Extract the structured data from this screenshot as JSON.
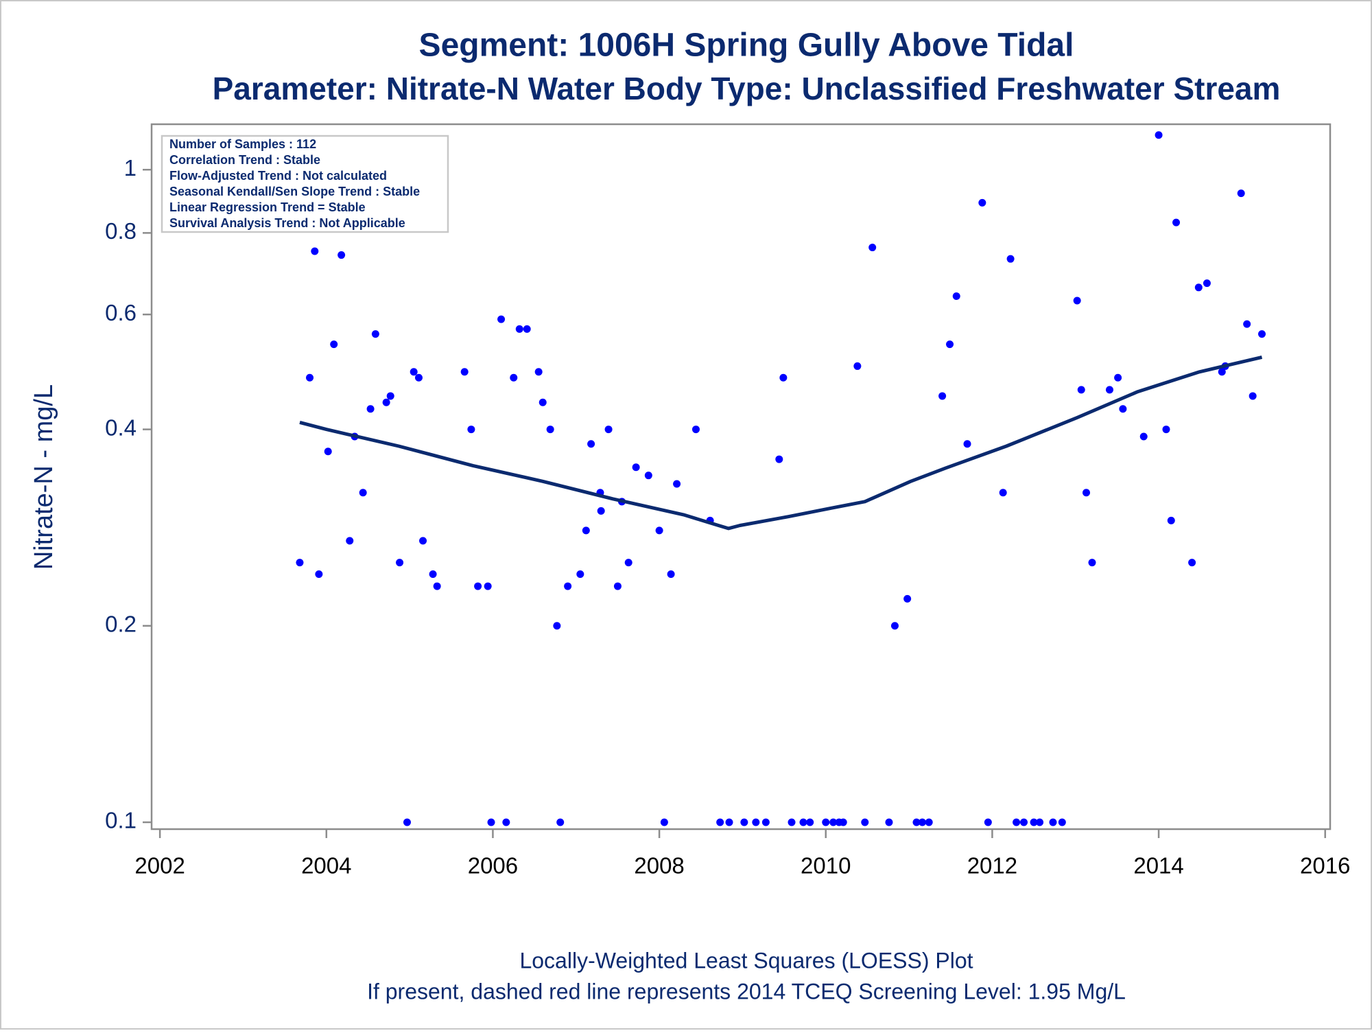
{
  "chart_data": {
    "type": "scatter",
    "title": "Segment: 1006H  Spring Gully Above Tidal",
    "subtitle": "Parameter: Nitrate-N   Water Body Type: Unclassified Freshwater Stream",
    "ylabel": "Nitrate-N - mg/L",
    "footnotes": [
      "Locally-Weighted Least Squares (LOESS) Plot",
      "If present, dashed red line represents 2014 TCEQ Screening Level: 1.95 Mg/L"
    ],
    "annotations": [
      "Number of Samples : 112",
      "Correlation Trend : Stable",
      "Flow-Adjusted Trend : Not calculated",
      "Seasonal Kendall/Sen Slope Trend : Stable",
      "Linear Regression Trend = Stable",
      "Survival Analysis Trend : Not Applicable"
    ],
    "ylog": true,
    "xlim": [
      2001.9,
      2016.06
    ],
    "xticks": [
      2002,
      2004,
      2006,
      2008,
      2010,
      2012,
      2014,
      2016
    ],
    "ylim": [
      0.0976,
      1.174
    ],
    "yticks": [
      0.1,
      0.2,
      0.4,
      0.6,
      0.8,
      1
    ],
    "series": [
      {
        "style": "points",
        "color": "#0000ff",
        "x": [
          2003.68,
          2003.8,
          2003.86,
          2003.91,
          2004.02,
          2004.09,
          2004.18,
          2004.28,
          2004.34,
          2004.44,
          2004.53,
          2004.59,
          2004.72,
          2004.77,
          2004.88,
          2004.97,
          2005.05,
          2005.11,
          2005.16,
          2005.28,
          2005.33,
          2005.66,
          2005.74,
          2005.82,
          2005.94,
          2005.98,
          2006.1,
          2006.16,
          2006.25,
          2006.32,
          2006.41,
          2006.55,
          2006.6,
          2006.69,
          2006.77,
          2006.81,
          2006.9,
          2007.05,
          2007.12,
          2007.18,
          2007.29,
          2007.3,
          2007.39,
          2007.5,
          2007.55,
          2007.63,
          2007.72,
          2007.87,
          2008.0,
          2008.06,
          2008.14,
          2008.21,
          2008.44,
          2008.61,
          2008.73,
          2008.84,
          2009.02,
          2009.16,
          2009.28,
          2009.44,
          2009.49,
          2009.59,
          2009.73,
          2009.81,
          2010.0,
          2010.09,
          2010.16,
          2010.21,
          2010.38,
          2010.47,
          2010.56,
          2010.76,
          2010.83,
          2010.98,
          2011.09,
          2011.16,
          2011.24,
          2011.4,
          2011.49,
          2011.57,
          2011.7,
          2011.88,
          2011.95,
          2012.13,
          2012.22,
          2012.29,
          2012.38,
          2012.5,
          2012.57,
          2012.73,
          2012.84,
          2013.02,
          2013.07,
          2013.13,
          2013.2,
          2013.41,
          2013.51,
          2013.57,
          2013.82,
          2014.0,
          2014.09,
          2014.15,
          2014.21,
          2014.4,
          2014.48,
          2014.58,
          2014.76,
          2014.8,
          2014.99,
          2015.06,
          2015.13,
          2015.24
        ],
        "values": [
          0.25,
          0.48,
          0.75,
          0.24,
          0.37,
          0.54,
          0.74,
          0.27,
          0.39,
          0.32,
          0.43,
          0.56,
          0.44,
          0.45,
          0.25,
          0.1,
          0.49,
          0.48,
          0.27,
          0.24,
          0.23,
          0.49,
          0.4,
          0.23,
          0.23,
          0.1,
          0.59,
          0.1,
          0.48,
          0.57,
          0.57,
          0.49,
          0.44,
          0.4,
          0.2,
          0.1,
          0.23,
          0.24,
          0.28,
          0.38,
          0.32,
          0.3,
          0.4,
          0.23,
          0.31,
          0.25,
          0.35,
          0.34,
          0.28,
          0.1,
          0.24,
          0.33,
          0.4,
          0.29,
          0.1,
          0.1,
          0.1,
          0.1,
          0.1,
          0.36,
          0.48,
          0.1,
          0.1,
          0.1,
          0.1,
          0.1,
          0.1,
          0.1,
          0.5,
          0.1,
          0.76,
          0.1,
          0.2,
          0.22,
          0.1,
          0.1,
          0.1,
          0.45,
          0.54,
          0.64,
          0.38,
          0.89,
          0.1,
          0.32,
          0.73,
          0.1,
          0.1,
          0.1,
          0.1,
          0.1,
          0.1,
          0.63,
          0.46,
          0.32,
          0.25,
          0.46,
          0.48,
          0.43,
          0.39,
          1.13,
          0.4,
          0.29,
          0.83,
          0.25,
          0.66,
          0.67,
          0.49,
          0.5,
          0.92,
          0.58,
          0.45,
          0.56
        ]
      },
      {
        "style": "line",
        "color": "#0b2a6f",
        "x": [
          2003.68,
          2004.0,
          2004.87,
          2005.76,
          2006.6,
          2007.44,
          2008.29,
          2008.71,
          2008.83,
          2008.97,
          2009.55,
          2010.07,
          2010.47,
          2011.02,
          2011.44,
          2012.17,
          2013.02,
          2013.75,
          2014.49,
          2015.24
        ],
        "values": [
          0.41,
          0.4,
          0.377,
          0.352,
          0.333,
          0.313,
          0.296,
          0.285,
          0.282,
          0.285,
          0.294,
          0.303,
          0.31,
          0.333,
          0.349,
          0.377,
          0.417,
          0.457,
          0.49,
          0.516
        ]
      }
    ]
  }
}
